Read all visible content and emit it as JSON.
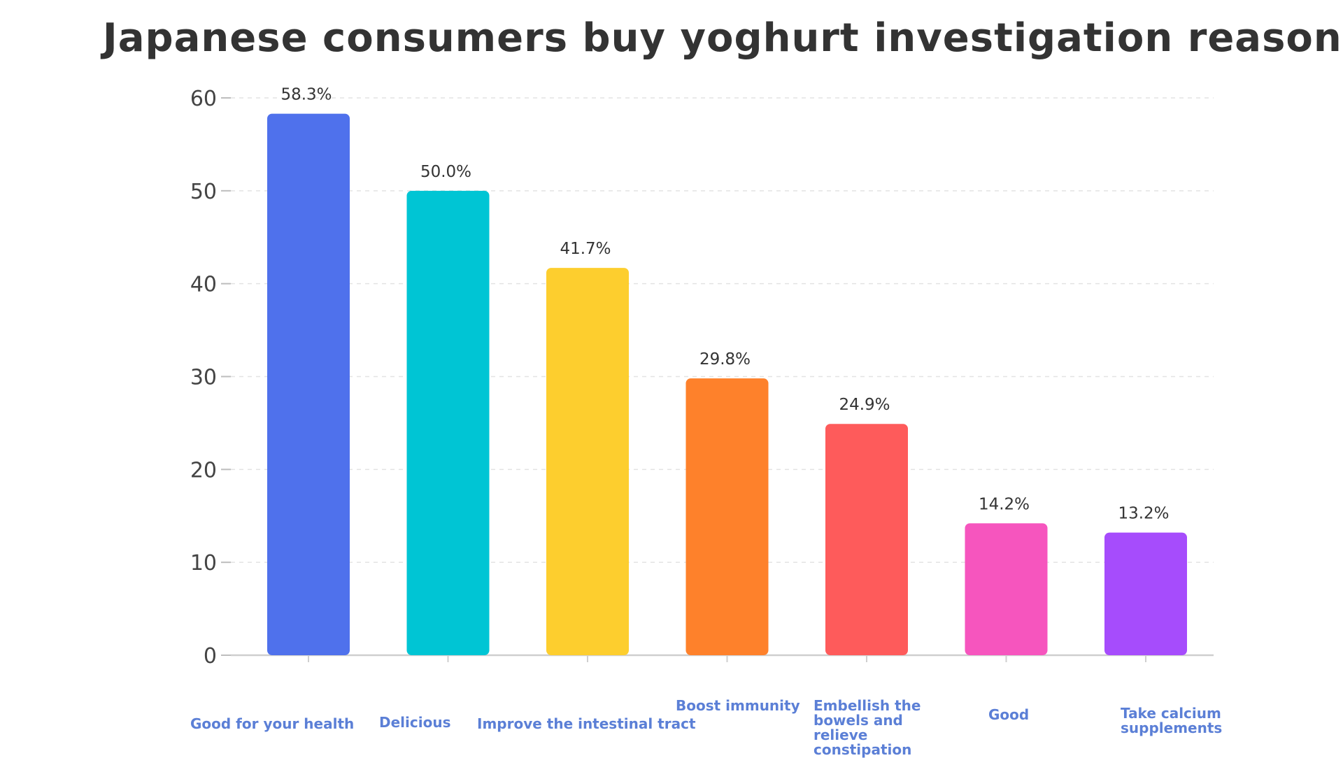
{
  "chart_data": {
    "type": "bar",
    "title": "Japanese consumers buy yoghurt investigation reasons",
    "xlabel": "",
    "ylabel": "",
    "ylim": [
      0,
      60
    ],
    "yticks": [
      0,
      10,
      20,
      30,
      40,
      50,
      60
    ],
    "grid": true,
    "categories": [
      "Good for your health",
      "Delicious",
      "Improve the intestinal tract",
      "Boost immunity",
      "Embellish the bowels and relieve constipation",
      "Good",
      "Take calcium supplements"
    ],
    "values": [
      58.3,
      50.0,
      41.7,
      29.8,
      24.9,
      14.2,
      13.2
    ],
    "data_labels": [
      "58.3%",
      "50.0%",
      "41.7%",
      "29.8%",
      "24.9%",
      "14.2%",
      "13.2%"
    ],
    "colors": [
      "#4f71ec",
      "#00c5d4",
      "#fdce2e",
      "#fe812b",
      "#fe5b5b",
      "#f655be",
      "#a64cfc"
    ],
    "label_color": "#5b7fd6"
  }
}
